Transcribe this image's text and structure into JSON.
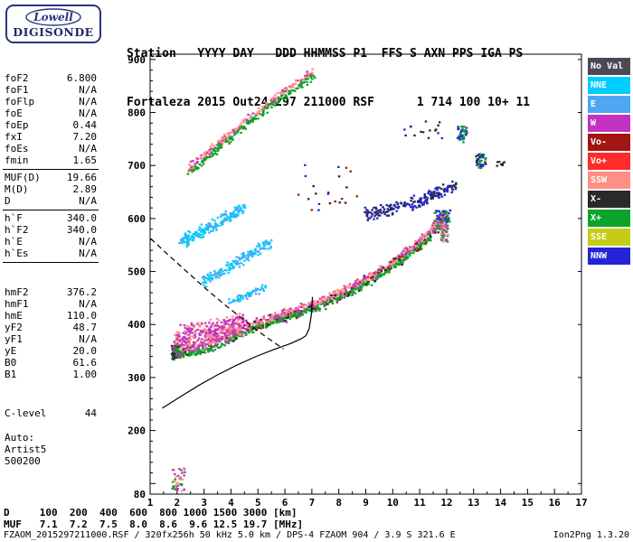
{
  "logo": {
    "line1": "Lowell",
    "line2": "DIGISONDE"
  },
  "header": {
    "line1": "Station   YYYY DAY   DDD HHMMSS P1  FFS S AXN PPS IGA PS",
    "line2": "Fortaleza 2015 Out24 297 211000 RSF      1 714 100 10+ 11"
  },
  "panel": {
    "groups": [
      {
        "rows": [
          {
            "label": "foF2",
            "value": "6.800"
          },
          {
            "label": "foF1",
            "value": "N/A"
          },
          {
            "label": "foFlp",
            "value": "N/A"
          },
          {
            "label": "foE",
            "value": "N/A"
          },
          {
            "label": "foEp",
            "value": "0.44"
          },
          {
            "label": "fxI",
            "value": "7.20"
          },
          {
            "label": "foEs",
            "value": "N/A"
          },
          {
            "label": "fmin",
            "value": "1.65"
          }
        ],
        "separator": true,
        "gap": 0
      },
      {
        "rows": [
          {
            "label": "MUF(D)",
            "value": "19.66"
          },
          {
            "label": "M(D)",
            "value": "2.89"
          },
          {
            "label": "D",
            "value": "N/A"
          }
        ],
        "separator": true,
        "gap": 0
      },
      {
        "rows": [
          {
            "label": "h`F",
            "value": "340.0"
          },
          {
            "label": "h`F2",
            "value": "340.0"
          },
          {
            "label": "h`E",
            "value": "N/A"
          },
          {
            "label": "h`Es",
            "value": "N/A"
          }
        ],
        "separator": true,
        "gap": 24
      },
      {
        "rows": [
          {
            "label": "hmF2",
            "value": "376.2"
          },
          {
            "label": "hmF1",
            "value": "N/A"
          },
          {
            "label": "hmE",
            "value": "110.0"
          },
          {
            "label": "yF2",
            "value": "48.7"
          },
          {
            "label": "yF1",
            "value": "N/A"
          },
          {
            "label": "yE",
            "value": "20.0"
          },
          {
            "label": "B0",
            "value": "61.6"
          },
          {
            "label": "B1",
            "value": "1.00"
          }
        ],
        "separator": false,
        "gap": 30
      },
      {
        "rows": [
          {
            "label": "C-level",
            "value": "44"
          }
        ],
        "separator": false,
        "gap": 14
      },
      {
        "rows": [
          {
            "label": "Auto:",
            "value": ""
          },
          {
            "label": "Artist5",
            "value": ""
          },
          {
            "label": "500200",
            "value": ""
          }
        ],
        "separator": false,
        "gap": 0
      }
    ]
  },
  "legend": {
    "items": [
      {
        "label": "No Val",
        "color": "NoVal"
      },
      {
        "label": "NNE",
        "color": "NNE"
      },
      {
        "label": "E",
        "color": "E"
      },
      {
        "label": "W",
        "color": "W"
      },
      {
        "label": "Vo-",
        "color": "VoMinus"
      },
      {
        "label": "Vo+",
        "color": "VoPlus"
      },
      {
        "label": "SSW",
        "color": "SSW"
      },
      {
        "label": "X-",
        "color": "XMinus"
      },
      {
        "label": "X+",
        "color": "XPlus"
      },
      {
        "label": "SSE",
        "color": "SSE"
      },
      {
        "label": "NNW",
        "color": "NNW"
      }
    ]
  },
  "chart_data": {
    "type": "scatter",
    "x_unit": "MHz",
    "y_unit": "km",
    "x_range": [
      1,
      17
    ],
    "y_range": [
      80,
      910
    ],
    "x_ticks": [
      1,
      2,
      3,
      4,
      5,
      6,
      7,
      8,
      9,
      10,
      11,
      12,
      13,
      14,
      15,
      16,
      17
    ],
    "y_ticks": [
      900,
      800,
      700,
      600,
      500,
      400,
      300,
      200,
      80
    ],
    "palette": {
      "NoVal": "#4A4A55",
      "NNE": "#00CDFF",
      "E": "#4FA7F2",
      "W": "#C233C2",
      "VoMinus": "#A31515",
      "VoPlus": "#FF2A2A",
      "SSW": "#FF8F85",
      "XMinus": "#2A2A2A",
      "XPlus": "#0BA32A",
      "SSE": "#C4CC17",
      "NNW": "#2424D6"
    },
    "traces": [
      {
        "name": "f-trace-green",
        "kind": "band",
        "pts": [
          [
            1.9,
            342
          ],
          [
            2.6,
            347
          ],
          [
            3.3,
            356
          ],
          [
            4.0,
            372
          ],
          [
            4.7,
            390
          ],
          [
            5.4,
            403
          ],
          [
            6.1,
            414
          ],
          [
            6.8,
            425
          ],
          [
            7.5,
            438
          ],
          [
            8.2,
            455
          ],
          [
            8.9,
            472
          ],
          [
            9.6,
            495
          ],
          [
            10.3,
            520
          ],
          [
            11.0,
            548
          ],
          [
            11.5,
            572
          ],
          [
            11.85,
            598
          ]
        ],
        "spread": 8,
        "offset": 0,
        "n": 620,
        "colors": [
          "XPlus"
        ]
      },
      {
        "name": "f-trace-pink",
        "kind": "band",
        "pts": [
          [
            1.9,
            342
          ],
          [
            2.6,
            347
          ],
          [
            3.3,
            356
          ],
          [
            4.0,
            372
          ],
          [
            4.7,
            390
          ],
          [
            5.4,
            403
          ],
          [
            6.1,
            414
          ],
          [
            6.8,
            425
          ],
          [
            7.5,
            438
          ],
          [
            8.2,
            455
          ],
          [
            8.9,
            472
          ],
          [
            9.6,
            495
          ],
          [
            10.3,
            520
          ],
          [
            11.0,
            548
          ],
          [
            11.5,
            572
          ],
          [
            11.85,
            598
          ]
        ],
        "spread": 8,
        "offset": 10,
        "n": 560,
        "colors": [
          "SSW",
          "SSW",
          "W"
        ]
      },
      {
        "name": "f-trace-dark",
        "kind": "band",
        "pts": [
          [
            1.9,
            342
          ],
          [
            2.6,
            347
          ],
          [
            3.3,
            356
          ],
          [
            4.0,
            372
          ],
          [
            4.7,
            390
          ],
          [
            5.4,
            403
          ],
          [
            6.1,
            414
          ],
          [
            6.8,
            425
          ],
          [
            7.5,
            438
          ],
          [
            8.2,
            455
          ],
          [
            8.9,
            472
          ],
          [
            9.6,
            495
          ],
          [
            10.3,
            520
          ],
          [
            11.0,
            548
          ],
          [
            11.5,
            572
          ],
          [
            11.85,
            598
          ]
        ],
        "spread": 14,
        "offset": 4,
        "n": 150,
        "colors": [
          "VoMinus",
          "W",
          "XMinus"
        ]
      },
      {
        "name": "f-cloud-magenta",
        "kind": "band",
        "pts": [
          [
            1.9,
            372
          ],
          [
            2.5,
            378
          ],
          [
            3.1,
            384
          ],
          [
            3.8,
            392
          ],
          [
            4.5,
            401
          ]
        ],
        "spread": 26,
        "offset": 0,
        "n": 380,
        "colors": [
          "W",
          "W",
          "SSW"
        ]
      },
      {
        "name": "trace-start-dense",
        "kind": "blob",
        "f": [
          1.8,
          2.1
        ],
        "h": [
          333,
          360
        ],
        "n": 70,
        "colors": [
          "XMinus",
          "XPlus",
          "W"
        ]
      },
      {
        "name": "trace-end-dense",
        "kind": "blob",
        "f": [
          11.78,
          12.05
        ],
        "h": [
          556,
          614
        ],
        "n": 90,
        "colors": [
          "SSW",
          "XPlus",
          "W"
        ]
      },
      {
        "name": "second-hop-pink",
        "kind": "band",
        "pts": [
          [
            2.45,
            692
          ],
          [
            3.1,
            722
          ],
          [
            3.8,
            752
          ],
          [
            4.5,
            782
          ],
          [
            5.2,
            810
          ],
          [
            5.9,
            836
          ],
          [
            6.5,
            856
          ],
          [
            7.05,
            876
          ]
        ],
        "spread": 9,
        "offset": 0,
        "n": 250,
        "colors": [
          "SSW",
          "W",
          "SSW"
        ]
      },
      {
        "name": "second-hop-green",
        "kind": "band",
        "pts": [
          [
            2.45,
            692
          ],
          [
            3.1,
            722
          ],
          [
            3.8,
            752
          ],
          [
            4.5,
            782
          ],
          [
            5.2,
            810
          ],
          [
            5.9,
            836
          ],
          [
            6.5,
            856
          ],
          [
            7.05,
            876
          ]
        ],
        "spread": 8,
        "offset": -8,
        "n": 160,
        "colors": [
          "XPlus"
        ]
      },
      {
        "name": "offvertical-cyan-upper",
        "kind": "band",
        "pts": [
          [
            2.15,
            556
          ],
          [
            2.9,
            574
          ],
          [
            3.7,
            596
          ],
          [
            4.5,
            620
          ]
        ],
        "spread": 15,
        "offset": 0,
        "n": 200,
        "colors": [
          "NNE",
          "E",
          "NNE"
        ]
      },
      {
        "name": "offvertical-cyan-mid",
        "kind": "band",
        "pts": [
          [
            2.9,
            478
          ],
          [
            3.6,
            498
          ],
          [
            4.3,
            520
          ],
          [
            5.0,
            540
          ],
          [
            5.5,
            556
          ]
        ],
        "spread": 12,
        "offset": 0,
        "n": 170,
        "colors": [
          "NNE",
          "E"
        ]
      },
      {
        "name": "offvertical-cyan-low",
        "kind": "band",
        "pts": [
          [
            3.9,
            440
          ],
          [
            4.6,
            456
          ],
          [
            5.3,
            472
          ]
        ],
        "spread": 9,
        "offset": 0,
        "n": 60,
        "colors": [
          "E",
          "NNE"
        ]
      },
      {
        "name": "oblique-blue-band",
        "kind": "band",
        "pts": [
          [
            8.9,
            608
          ],
          [
            9.6,
            614
          ],
          [
            10.3,
            622
          ],
          [
            11.0,
            634
          ],
          [
            11.7,
            648
          ],
          [
            12.3,
            660
          ]
        ],
        "spread": 15,
        "offset": 0,
        "n": 200,
        "colors": [
          "NNW",
          "NNW",
          "XMinus"
        ]
      },
      {
        "name": "patch-green-upper-1",
        "kind": "blob",
        "f": [
          12.4,
          12.75
        ],
        "h": [
          743,
          775
        ],
        "n": 40,
        "colors": [
          "XPlus",
          "NNW"
        ]
      },
      {
        "name": "patch-green-upper-2",
        "kind": "blob",
        "f": [
          13.05,
          13.45
        ],
        "h": [
          695,
          722
        ],
        "n": 45,
        "colors": [
          "XPlus",
          "XMinus",
          "NNW"
        ]
      },
      {
        "name": "patch-right-of-trace",
        "kind": "blob",
        "f": [
          11.55,
          12.2
        ],
        "h": [
          593,
          616
        ],
        "n": 35,
        "colors": [
          "XPlus",
          "NNW"
        ]
      },
      {
        "name": "specks-far-right",
        "kind": "blob",
        "f": [
          13.8,
          14.15
        ],
        "h": [
          697,
          712
        ],
        "n": 8,
        "colors": [
          "XMinus"
        ]
      },
      {
        "name": "specks-upper-mid",
        "kind": "blob",
        "f": [
          10.4,
          11.9
        ],
        "h": [
          745,
          790
        ],
        "n": 16,
        "colors": [
          "NNW",
          "XMinus"
        ]
      },
      {
        "name": "noise-mid",
        "kind": "blob",
        "f": [
          6.5,
          8.7
        ],
        "h": [
          615,
          702
        ],
        "n": 22,
        "colors": [
          "NNW",
          "XMinus",
          "VoMinus"
        ]
      },
      {
        "name": "es-left-bits",
        "kind": "blob",
        "f": [
          1.82,
          2.32
        ],
        "h": [
          85,
          130
        ],
        "n": 45,
        "colors": [
          "W",
          "XPlus",
          "SSW"
        ]
      }
    ],
    "profile": {
      "dashed": [
        [
          1.02,
          562
        ],
        [
          1.7,
          530
        ],
        [
          2.4,
          498
        ],
        [
          3.1,
          466
        ],
        [
          3.8,
          436
        ],
        [
          4.5,
          408
        ],
        [
          5.1,
          384
        ],
        [
          5.6,
          366
        ],
        [
          5.95,
          354
        ]
      ],
      "solid": [
        [
          1.45,
          242
        ],
        [
          2.1,
          263
        ],
        [
          2.8,
          285
        ],
        [
          3.5,
          305
        ],
        [
          4.2,
          323
        ],
        [
          4.9,
          339
        ],
        [
          5.6,
          353
        ],
        [
          6.2,
          364
        ],
        [
          6.6,
          373
        ],
        [
          6.78,
          379
        ],
        [
          6.9,
          392
        ],
        [
          6.98,
          418
        ],
        [
          7.02,
          452
        ]
      ]
    }
  },
  "muf_table": {
    "rows": [
      {
        "label": "D",
        "values": [
          "100",
          "200",
          "400",
          "600",
          "800",
          "1000",
          "1500",
          "3000"
        ],
        "unit": "[km]"
      },
      {
        "label": "MUF",
        "values": [
          "7.1",
          "7.2",
          "7.5",
          "8.0",
          "8.6",
          "9.6",
          "12.5",
          "19.7"
        ],
        "unit": "[MHz]"
      }
    ]
  },
  "footer": {
    "left": "FZAOM_2015297211000.RSF / 320fx256h 50 kHz 5.0 km / DPS-4 FZAOM 904 / 3.9 S 321.6 E",
    "right": "Ion2Png 1.3.20"
  }
}
